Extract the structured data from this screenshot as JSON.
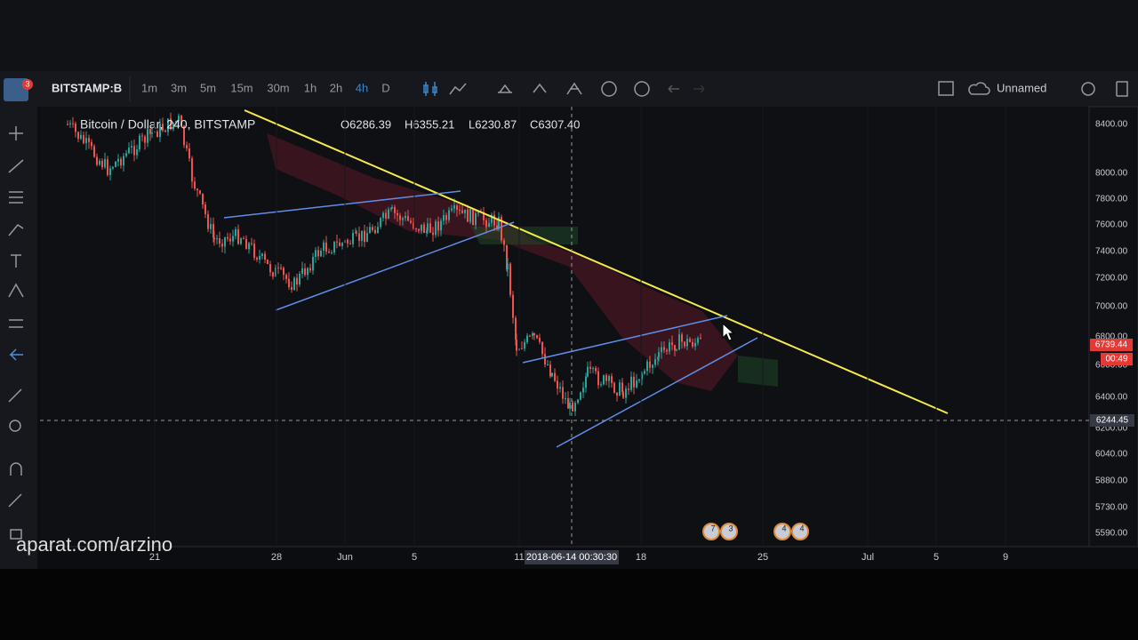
{
  "toolbar": {
    "symbol": "BITSTAMP:B",
    "intervals": [
      "1m",
      "3m",
      "5m",
      "15m",
      "30m",
      "1h",
      "2h",
      "4h",
      "D"
    ],
    "active_interval": "4h",
    "layout_name": "Unnamed",
    "notification_count": "3"
  },
  "legend": {
    "title": "Bitcoin / Dollar, 240, BITSTAMP",
    "open": "O6286.39",
    "high": "H6355.21",
    "low": "L6230.87",
    "close": "C6307.40"
  },
  "price_axis": {
    "labels": [
      "8400.00",
      "8000.00",
      "7800.00",
      "7600.00",
      "7400.00",
      "7200.00",
      "7000.00",
      "6800.00",
      "6600.00",
      "6400.00",
      "6200.00",
      "6040.00",
      "5880.00",
      "5730.00",
      "5590.00"
    ],
    "last_price": "6739.44",
    "countdown": "00:49",
    "crosshair_price": "6244.45"
  },
  "time_axis": {
    "labels": [
      "21",
      "28",
      "Jun",
      "5",
      "11",
      "18",
      "25",
      "Jul",
      "5",
      "9"
    ],
    "crosshair_time": "2018-06-14 00:30:30"
  },
  "events": [
    "7",
    "3",
    "4",
    "4"
  ],
  "watermark": "aparat.com/arzino"
}
